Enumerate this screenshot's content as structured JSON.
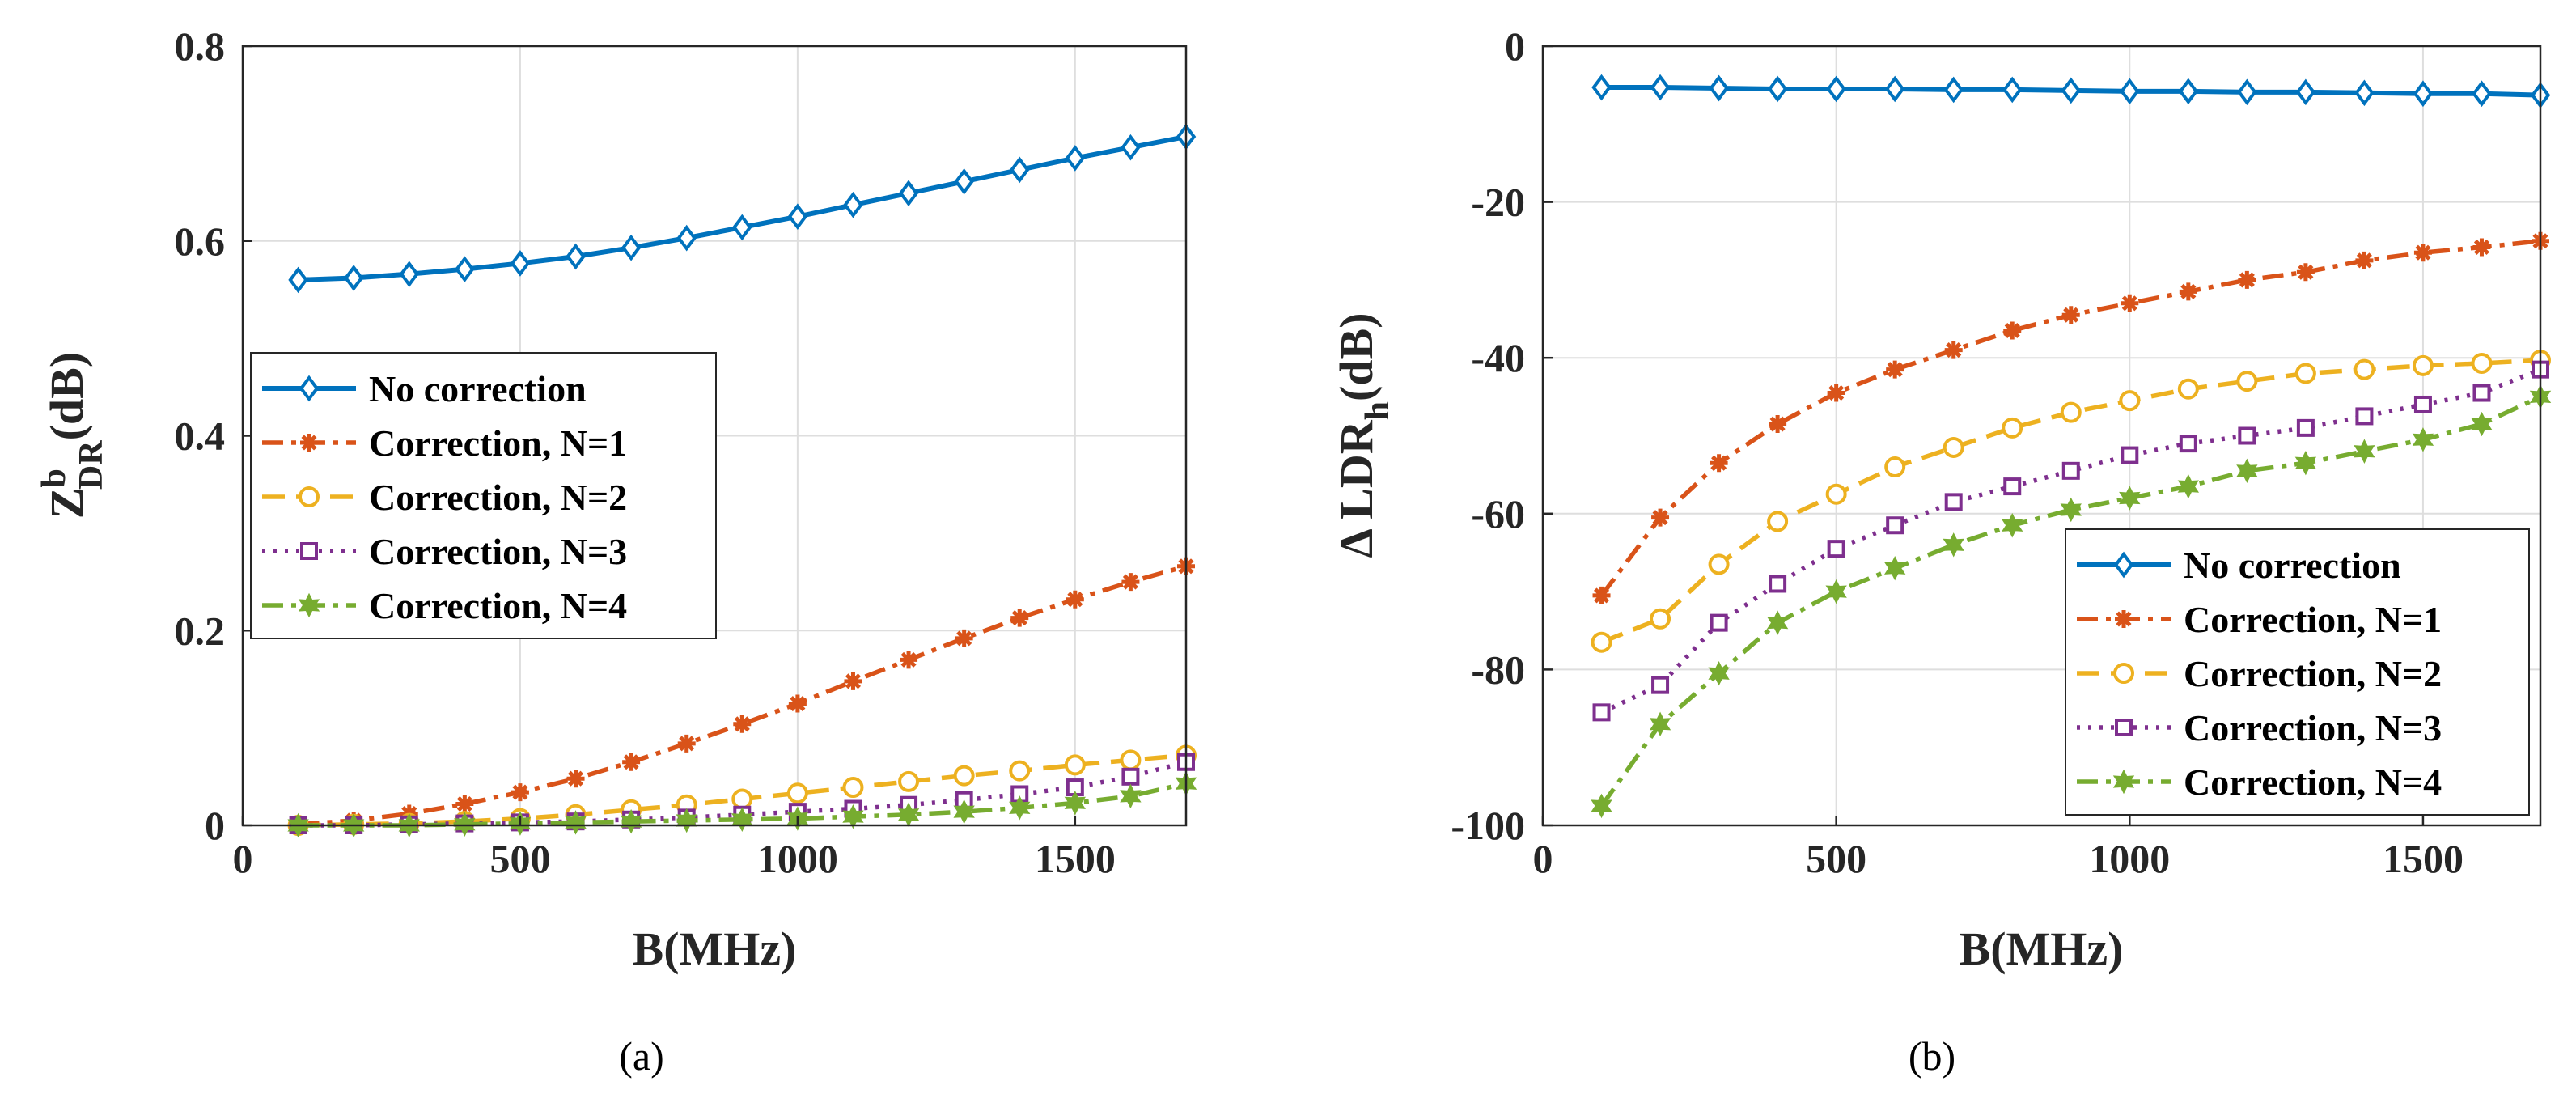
{
  "colors": {
    "no_correction": "#0072BD",
    "n1": "#D95319",
    "n2": "#EDB120",
    "n3": "#7E2F8E",
    "n4": "#77AC30"
  },
  "chart_data": [
    {
      "type": "line",
      "panel": "(a)",
      "caption": "(a)",
      "xlabel": "B(MHz)",
      "ylabel_main": "Z",
      "ylabel_sup": "b",
      "ylabel_sub": "DR",
      "ylabel_unit": "(dB)",
      "xlim": [
        0,
        1700
      ],
      "ylim": [
        0,
        0.8
      ],
      "xticks": [
        0,
        500,
        1000,
        1500
      ],
      "xtick_labels": [
        "0",
        "500",
        "1000",
        "1500"
      ],
      "yticks": [
        0,
        0.2,
        0.4,
        0.6,
        0.8
      ],
      "ytick_labels": [
        "0",
        "0.2",
        "0.4",
        "0.6",
        "0.8"
      ],
      "grid": true,
      "legend_position": "center-left",
      "x": [
        100,
        200,
        300,
        400,
        500,
        600,
        700,
        800,
        900,
        1000,
        1100,
        1200,
        1300,
        1400,
        1500,
        1600,
        1700
      ],
      "series": [
        {
          "name": "No correction",
          "key": "no_correction",
          "marker": "diamond",
          "dash": "solid",
          "values": [
            0.56,
            0.562,
            0.566,
            0.571,
            0.577,
            0.584,
            0.593,
            0.603,
            0.614,
            0.625,
            0.637,
            0.649,
            0.661,
            0.673,
            0.685,
            0.696,
            0.707
          ]
        },
        {
          "name": "Correction, N=1",
          "key": "n1",
          "marker": "asterisk",
          "dash": "dashdot",
          "values": [
            0.001,
            0.005,
            0.012,
            0.022,
            0.034,
            0.048,
            0.065,
            0.084,
            0.104,
            0.125,
            0.148,
            0.17,
            0.192,
            0.213,
            0.232,
            0.25,
            0.266
          ]
        },
        {
          "name": "Correction, N=2",
          "key": "n2",
          "marker": "circle",
          "dash": "dashed",
          "values": [
            0.0,
            0.001,
            0.002,
            0.004,
            0.007,
            0.011,
            0.016,
            0.021,
            0.027,
            0.033,
            0.039,
            0.045,
            0.051,
            0.056,
            0.062,
            0.067,
            0.072
          ]
        },
        {
          "name": "Correction, N=3",
          "key": "n3",
          "marker": "square",
          "dash": "dotted",
          "values": [
            0.0,
            0.0,
            0.001,
            0.002,
            0.003,
            0.004,
            0.006,
            0.008,
            0.011,
            0.014,
            0.017,
            0.021,
            0.026,
            0.032,
            0.039,
            0.05,
            0.065
          ]
        },
        {
          "name": "Correction, N=4",
          "key": "n4",
          "marker": "hexagram",
          "dash": "dashdot",
          "values": [
            0.0,
            0.0,
            0.0,
            0.001,
            0.002,
            0.003,
            0.004,
            0.005,
            0.006,
            0.007,
            0.009,
            0.011,
            0.014,
            0.018,
            0.023,
            0.03,
            0.043
          ]
        }
      ]
    },
    {
      "type": "line",
      "panel": "(b)",
      "caption": "(b)",
      "xlabel": "B(MHz)",
      "ylabel_main": "Δ LDR",
      "ylabel_sub": "h",
      "ylabel_unit": "(dB)",
      "xlim": [
        0,
        1700
      ],
      "ylim": [
        -100,
        0
      ],
      "xticks": [
        0,
        500,
        1000,
        1500
      ],
      "xtick_labels": [
        "0",
        "500",
        "1000",
        "1500"
      ],
      "yticks": [
        -100,
        -80,
        -60,
        -40,
        -20,
        0
      ],
      "ytick_labels": [
        "-100",
        "-80",
        "-60",
        "-40",
        "-20",
        "0"
      ],
      "grid": true,
      "legend_position": "bottom-right",
      "x": [
        100,
        200,
        300,
        400,
        500,
        600,
        700,
        800,
        900,
        1000,
        1100,
        1200,
        1300,
        1400,
        1500,
        1600,
        1700
      ],
      "series": [
        {
          "name": "No correction",
          "key": "no_correction",
          "marker": "diamond",
          "dash": "solid",
          "values": [
            -5.3,
            -5.3,
            -5.4,
            -5.5,
            -5.5,
            -5.5,
            -5.6,
            -5.6,
            -5.7,
            -5.8,
            -5.8,
            -5.9,
            -5.9,
            -6.0,
            -6.1,
            -6.1,
            -6.3
          ]
        },
        {
          "name": "Correction, N=1",
          "key": "n1",
          "marker": "asterisk",
          "dash": "dashdot",
          "values": [
            -70.5,
            -60.5,
            -53.5,
            -48.5,
            -44.5,
            -41.5,
            -39.0,
            -36.5,
            -34.5,
            -33.0,
            -31.5,
            -30.0,
            -29.0,
            -27.5,
            -26.5,
            -25.8,
            -25.0
          ]
        },
        {
          "name": "Correction, N=2",
          "key": "n2",
          "marker": "circle",
          "dash": "dashed",
          "values": [
            -76.5,
            -73.5,
            -66.5,
            -61.0,
            -57.5,
            -54.0,
            -51.5,
            -49.0,
            -47.0,
            -45.5,
            -44.0,
            -43.0,
            -42.0,
            -41.5,
            -41.0,
            -40.7,
            -40.3
          ]
        },
        {
          "name": "Correction, N=3",
          "key": "n3",
          "marker": "square",
          "dash": "dotted",
          "values": [
            -85.5,
            -82.0,
            -74.0,
            -69.0,
            -64.5,
            -61.5,
            -58.5,
            -56.5,
            -54.5,
            -52.5,
            -51.0,
            -50.0,
            -49.0,
            -47.5,
            -46.0,
            -44.5,
            -41.5
          ]
        },
        {
          "name": "Correction, N=4",
          "key": "n4",
          "marker": "hexagram",
          "dash": "dashdot",
          "values": [
            -97.5,
            -87.0,
            -80.5,
            -74.0,
            -70.0,
            -67.0,
            -64.0,
            -61.5,
            -59.5,
            -58.0,
            -56.5,
            -54.5,
            -53.5,
            -52.0,
            -50.5,
            -48.5,
            -45.0
          ]
        }
      ]
    }
  ]
}
